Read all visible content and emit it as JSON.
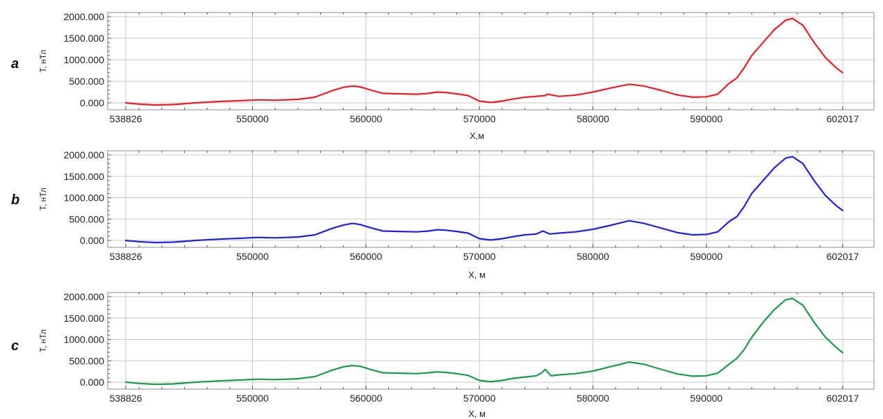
{
  "chart_data": [
    {
      "type": "line",
      "panel_label": "a",
      "xlabel": "X,м",
      "ylabel": "T, нТл",
      "xlim": [
        538826,
        602017
      ],
      "ylim": [
        0,
        2000
      ],
      "x_ticks": [
        538826,
        550000,
        560000,
        570000,
        580000,
        590000,
        602017
      ],
      "x_tick_labels": [
        "538826",
        "550000",
        "560000",
        "570000",
        "580000",
        "590000",
        "602017"
      ],
      "y_ticks": [
        0,
        500,
        1000,
        1500,
        2000
      ],
      "y_tick_labels": [
        "0.000",
        "500.000",
        "1000.000",
        "1500.000",
        "2000.000"
      ],
      "grid": true,
      "color": "#ee1c24",
      "series": [
        {
          "x": [
            538826,
            540000,
            541500,
            543000,
            545000,
            547000,
            549000,
            550500,
            552000,
            554000,
            555500,
            557000,
            558000,
            558800,
            559500,
            560500,
            561500,
            563000,
            564500,
            565500,
            566300,
            567000,
            568000,
            569000,
            570000,
            571000,
            572000,
            573000,
            574000,
            575000,
            575800,
            576000,
            577000,
            578500,
            580000,
            581500,
            583200,
            584500,
            586000,
            587500,
            588800,
            590000,
            591000,
            592000,
            592700,
            593300,
            594000,
            595000,
            596000,
            597000,
            597600,
            598500,
            599500,
            600500,
            601500,
            602017
          ],
          "y": [
            0,
            -30,
            -50,
            -40,
            0,
            30,
            50,
            70,
            60,
            80,
            130,
            280,
            360,
            390,
            370,
            290,
            220,
            210,
            200,
            220,
            250,
            240,
            210,
            170,
            40,
            10,
            40,
            90,
            130,
            150,
            170,
            200,
            150,
            180,
            250,
            340,
            430,
            390,
            290,
            180,
            130,
            140,
            200,
            450,
            580,
            800,
            1100,
            1400,
            1700,
            1920,
            1960,
            1800,
            1400,
            1050,
            800,
            700
          ]
        }
      ]
    },
    {
      "type": "line",
      "panel_label": "b",
      "xlabel": "X, м",
      "ylabel": "T, нТл",
      "xlim": [
        538826,
        602017
      ],
      "ylim": [
        0,
        2000
      ],
      "x_ticks": [
        538826,
        550000,
        560000,
        570000,
        580000,
        590000,
        602017
      ],
      "x_tick_labels": [
        "538826",
        "550000",
        "560000",
        "570000",
        "580000",
        "590000",
        "602017"
      ],
      "y_ticks": [
        0,
        500,
        1000,
        1500,
        2000
      ],
      "y_tick_labels": [
        "0.000",
        "500.000",
        "1000.000",
        "1500.000",
        "2000.000"
      ],
      "grid": true,
      "color": "#1f1fe6",
      "series": [
        {
          "x": [
            538826,
            540000,
            541500,
            543000,
            545000,
            547000,
            549000,
            550500,
            552000,
            554000,
            555500,
            557000,
            558000,
            558800,
            559500,
            560500,
            561500,
            563000,
            564500,
            565500,
            566300,
            567000,
            568000,
            569000,
            570000,
            571000,
            572000,
            573000,
            574000,
            575000,
            575600,
            576200,
            577000,
            578500,
            580000,
            581500,
            583200,
            584500,
            586000,
            587500,
            588800,
            590000,
            591000,
            592000,
            592700,
            593300,
            594000,
            595000,
            596000,
            597000,
            597600,
            598500,
            599500,
            600500,
            601500,
            602017
          ],
          "y": [
            0,
            -30,
            -50,
            -40,
            0,
            30,
            50,
            70,
            60,
            80,
            130,
            280,
            360,
            400,
            370,
            290,
            220,
            210,
            200,
            220,
            250,
            240,
            210,
            170,
            40,
            10,
            40,
            90,
            130,
            150,
            220,
            150,
            170,
            200,
            260,
            350,
            460,
            400,
            290,
            180,
            130,
            140,
            200,
            440,
            560,
            780,
            1100,
            1400,
            1700,
            1930,
            1960,
            1800,
            1400,
            1050,
            800,
            700
          ]
        }
      ]
    },
    {
      "type": "line",
      "panel_label": "c",
      "xlabel": "X, м",
      "ylabel": "T, нТл",
      "xlim": [
        538826,
        602017
      ],
      "ylim": [
        0,
        2000
      ],
      "x_ticks": [
        538826,
        550000,
        560000,
        570000,
        580000,
        590000,
        602017
      ],
      "x_tick_labels": [
        "538826",
        "550000",
        "560000",
        "570000",
        "580000",
        "590000",
        "602017"
      ],
      "y_ticks": [
        0,
        500,
        1000,
        1500,
        2000
      ],
      "y_tick_labels": [
        "0.000",
        "500.000",
        "1000.000",
        "1500.000",
        "2000.000"
      ],
      "grid": true,
      "color": "#1a9a4a",
      "series": [
        {
          "x": [
            538826,
            540000,
            541500,
            543000,
            545000,
            547000,
            549000,
            550500,
            552000,
            554000,
            555500,
            557000,
            558000,
            558800,
            559500,
            560500,
            561500,
            563000,
            564500,
            565500,
            566300,
            567000,
            568000,
            569000,
            570000,
            571000,
            572000,
            573000,
            574000,
            575000,
            575500,
            575800,
            576300,
            577000,
            578500,
            580000,
            581500,
            583200,
            584500,
            586000,
            587500,
            588800,
            590000,
            591000,
            592000,
            592700,
            593300,
            594000,
            595000,
            596000,
            597000,
            597600,
            598500,
            599500,
            600500,
            601500,
            602017
          ],
          "y": [
            0,
            -30,
            -50,
            -40,
            0,
            30,
            50,
            70,
            60,
            80,
            130,
            280,
            360,
            390,
            370,
            290,
            220,
            210,
            200,
            220,
            240,
            230,
            200,
            160,
            40,
            10,
            40,
            90,
            120,
            150,
            220,
            300,
            150,
            170,
            200,
            260,
            360,
            470,
            420,
            300,
            190,
            140,
            150,
            210,
            420,
            560,
            750,
            1050,
            1400,
            1700,
            1930,
            1960,
            1800,
            1400,
            1050,
            800,
            690
          ]
        }
      ]
    }
  ]
}
